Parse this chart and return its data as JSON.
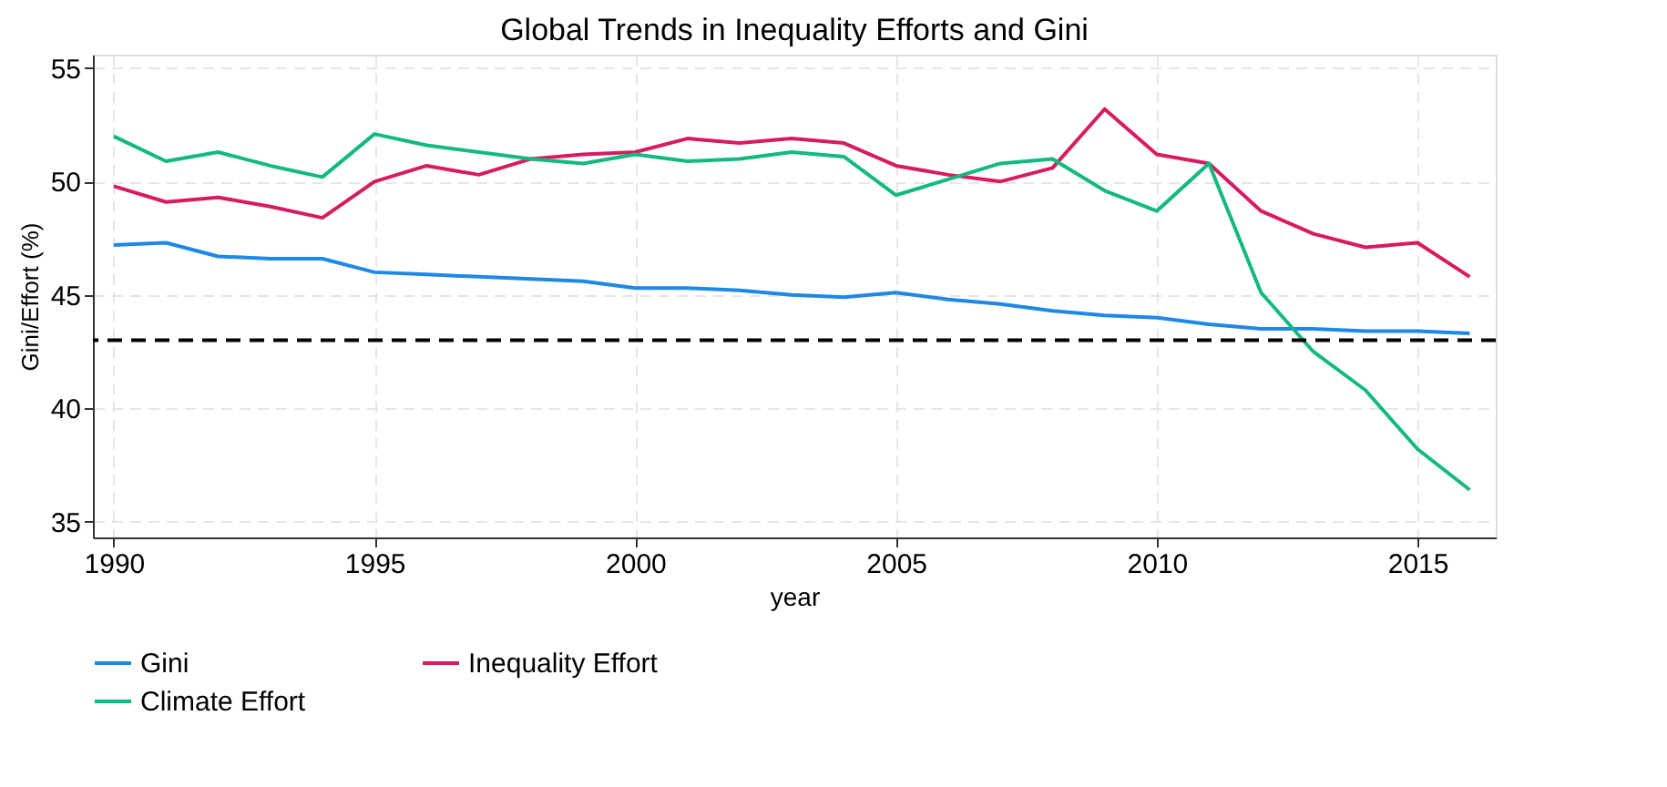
{
  "chart_data": {
    "type": "line",
    "title": "Global Trends in Inequality Efforts and Gini",
    "xlabel": "year",
    "ylabel": "Gini/Effort (%)",
    "x": [
      1990,
      1991,
      1992,
      1993,
      1994,
      1995,
      1996,
      1997,
      1998,
      1999,
      2000,
      2001,
      2002,
      2003,
      2004,
      2005,
      2006,
      2007,
      2008,
      2009,
      2010,
      2011,
      2012,
      2013,
      2014,
      2015,
      2016
    ],
    "series": [
      {
        "name": "Gini",
        "color": "#1e88e5",
        "values": [
          47.2,
          47.3,
          46.7,
          46.6,
          46.6,
          46.0,
          45.9,
          45.8,
          45.7,
          45.6,
          45.3,
          45.3,
          45.2,
          45.0,
          44.9,
          45.1,
          44.8,
          44.6,
          44.3,
          44.1,
          44.0,
          43.7,
          43.5,
          43.5,
          43.4,
          43.4,
          43.3
        ]
      },
      {
        "name": "Inequality Effort",
        "color": "#d81b60",
        "values": [
          49.8,
          49.1,
          49.3,
          48.9,
          48.4,
          50.0,
          50.7,
          50.3,
          51.0,
          51.2,
          51.3,
          51.9,
          51.7,
          51.9,
          51.7,
          50.7,
          50.3,
          50.0,
          50.6,
          53.2,
          51.2,
          50.8,
          48.7,
          47.7,
          47.1,
          47.3,
          45.8
        ]
      },
      {
        "name": "Climate Effort",
        "color": "#12b981",
        "values": [
          52.0,
          50.9,
          51.3,
          50.7,
          50.2,
          52.1,
          51.6,
          51.3,
          51.0,
          50.8,
          51.2,
          50.9,
          51.0,
          51.3,
          51.1,
          49.4,
          50.1,
          50.8,
          51.0,
          49.6,
          48.7,
          50.8,
          45.1,
          42.5,
          40.8,
          38.2,
          36.4
        ]
      }
    ],
    "xlim": [
      1989.6,
      2016.5
    ],
    "xticks": [
      1990,
      1995,
      2000,
      2005,
      2010,
      2015
    ],
    "ylim": [
      34.3,
      55.6
    ],
    "yticks": [
      35,
      40,
      45,
      50,
      55
    ],
    "ref_lines": [
      {
        "axis": "y",
        "value": 43,
        "color": "#000000",
        "line_style": "dashed"
      }
    ],
    "grid": true,
    "legend": "bottom",
    "line_style": "solid",
    "marker": "none"
  }
}
